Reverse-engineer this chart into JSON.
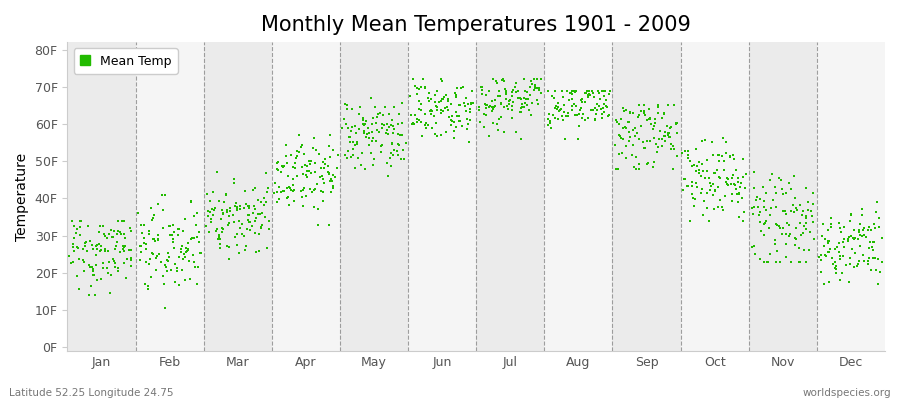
{
  "title": "Monthly Mean Temperatures 1901 - 2009",
  "ylabel": "Temperature",
  "dot_color": "#22bb00",
  "background_color": "#ffffff",
  "plot_bg_color": "#ffffff",
  "stripe_light": "#ebebeb",
  "stripe_dark": "#f5f5f5",
  "ytick_labels": [
    "0F",
    "10F",
    "20F",
    "30F",
    "40F",
    "50F",
    "60F",
    "70F",
    "80F"
  ],
  "ytick_values": [
    0,
    10,
    20,
    30,
    40,
    50,
    60,
    70,
    80
  ],
  "months": [
    "Jan",
    "Feb",
    "Mar",
    "Apr",
    "May",
    "Jun",
    "Jul",
    "Aug",
    "Sep",
    "Oct",
    "Nov",
    "Dec"
  ],
  "month_means_F": [
    26,
    27,
    35,
    47,
    57,
    64,
    67,
    65,
    57,
    45,
    34,
    27
  ],
  "month_stds_F": [
    5,
    6,
    5,
    5,
    5,
    4,
    4,
    4,
    5,
    5,
    6,
    5
  ],
  "month_mins_F": [
    4,
    5,
    20,
    33,
    46,
    55,
    56,
    56,
    48,
    34,
    23,
    17
  ],
  "month_maxs_F": [
    34,
    41,
    47,
    57,
    67,
    72,
    72,
    69,
    65,
    60,
    50,
    39
  ],
  "n_years": 109,
  "legend_label": "Mean Temp",
  "bottom_left": "Latitude 52.25 Longitude 24.75",
  "bottom_right": "worldspecies.org",
  "title_fontsize": 15,
  "label_fontsize": 10,
  "tick_fontsize": 9,
  "marker_size": 3
}
